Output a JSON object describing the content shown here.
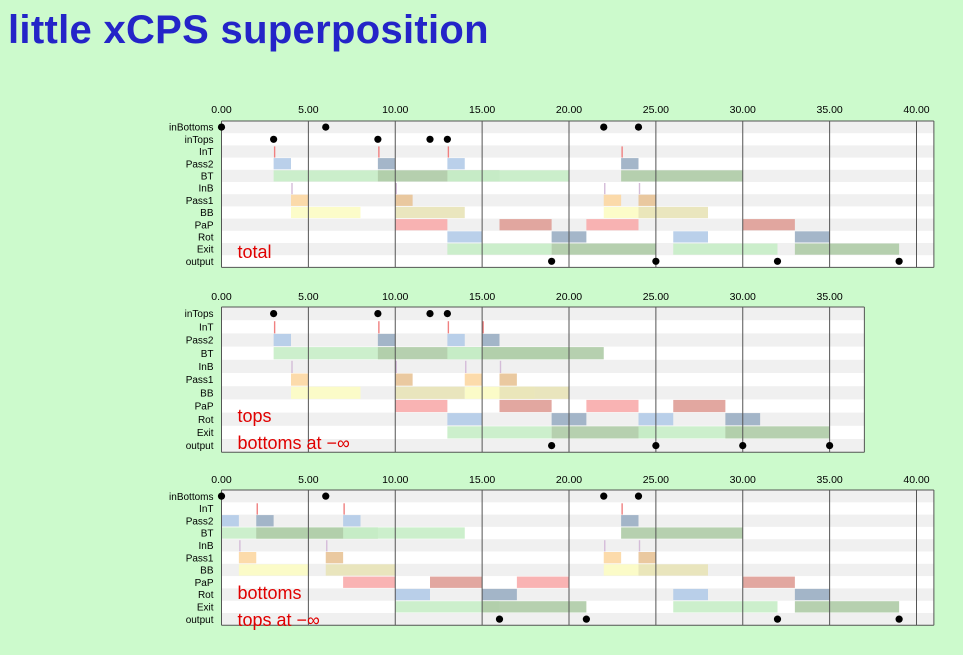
{
  "title": "little xCPS superposition",
  "colors": {
    "title": "#2424c8",
    "background": "#ccfacc",
    "caption": "#e00000",
    "Pass2": [
      "#b4cce8",
      "#9cb0c4"
    ],
    "BT": [
      "#c8eec8",
      "#b0cca8"
    ],
    "Pass1": [
      "#fcd8a4",
      "#e8c498"
    ],
    "BB": [
      "#fcfcc4",
      "#e8e4b8"
    ],
    "PaP": [
      "#f8acac",
      "#e0a098"
    ],
    "Rot": [
      "#b4cce8",
      "#9cb0c4"
    ],
    "Exit": [
      "#c8eec8",
      "#b0cca8"
    ],
    "tick": "#f08080",
    "tickLight": "#d4bcd8"
  },
  "charts": [
    {
      "name": "total",
      "captions": [
        "total"
      ],
      "x_ticks": [
        "0.00",
        "5.00",
        "10.00",
        "15.00",
        "20.00",
        "25.00",
        "30.00",
        "35.00",
        "40.00"
      ],
      "x_range": [
        0,
        41
      ],
      "rows": [
        "inBottoms",
        "inTops",
        "InT",
        "Pass2",
        "BT",
        "InB",
        "Pass1",
        "BB",
        "PaP",
        "Rot",
        "Exit",
        "output"
      ],
      "dots": [
        {
          "row": "inBottoms",
          "x": [
            0,
            6,
            22,
            24
          ]
        },
        {
          "row": "inTops",
          "x": [
            3,
            9,
            12,
            13
          ]
        },
        {
          "row": "output",
          "x": [
            19,
            25,
            32,
            39
          ]
        }
      ],
      "ticks": [
        {
          "row": "InT",
          "x": [
            3,
            9,
            13,
            23
          ],
          "light": false
        },
        {
          "row": "InB",
          "x": [
            4,
            10,
            22,
            24
          ],
          "light": true
        }
      ],
      "bars": [
        {
          "row": "Pass2",
          "spans": [
            [
              3,
              4,
              0
            ],
            [
              9,
              10,
              1
            ],
            [
              13,
              14,
              0
            ],
            [
              23,
              24,
              1
            ]
          ]
        },
        {
          "row": "BT",
          "spans": [
            [
              3,
              10,
              0
            ],
            [
              9,
              16,
              1
            ],
            [
              13,
              20,
              0
            ],
            [
              23,
              30,
              1
            ]
          ]
        },
        {
          "row": "Pass1",
          "spans": [
            [
              4,
              5,
              0
            ],
            [
              10,
              11,
              1
            ],
            [
              22,
              23,
              0
            ],
            [
              24,
              25,
              1
            ]
          ]
        },
        {
          "row": "BB",
          "spans": [
            [
              4,
              8,
              0
            ],
            [
              10,
              14,
              1
            ],
            [
              22,
              25,
              0
            ],
            [
              24,
              28,
              1
            ]
          ]
        },
        {
          "row": "PaP",
          "spans": [
            [
              10,
              13,
              0
            ],
            [
              16,
              19,
              1
            ],
            [
              21,
              24,
              0
            ],
            [
              30,
              33,
              1
            ]
          ]
        },
        {
          "row": "Rot",
          "spans": [
            [
              13,
              15,
              0
            ],
            [
              19,
              21,
              1
            ],
            [
              26,
              28,
              0
            ],
            [
              33,
              35,
              1
            ]
          ]
        },
        {
          "row": "Exit",
          "spans": [
            [
              13,
              19,
              0
            ],
            [
              19,
              25,
              1
            ],
            [
              26,
              32,
              0
            ],
            [
              33,
              39,
              1
            ]
          ]
        }
      ]
    },
    {
      "name": "tops",
      "captions": [
        "tops",
        "bottoms at −∞"
      ],
      "x_ticks": [
        "0.00",
        "5.00",
        "10.00",
        "15.00",
        "20.00",
        "25.00",
        "30.00",
        "35.00"
      ],
      "x_range": [
        0,
        37
      ],
      "rows": [
        "inTops",
        "InT",
        "Pass2",
        "BT",
        "InB",
        "Pass1",
        "BB",
        "PaP",
        "Rot",
        "Exit",
        "output"
      ],
      "dots": [
        {
          "row": "inTops",
          "x": [
            3,
            9,
            12,
            13
          ]
        },
        {
          "row": "output",
          "x": [
            19,
            25,
            30,
            35
          ]
        }
      ],
      "ticks": [
        {
          "row": "InT",
          "x": [
            3,
            9,
            13,
            15
          ],
          "light": false
        },
        {
          "row": "InB",
          "x": [
            4,
            10,
            14,
            16
          ],
          "light": true
        }
      ],
      "bars": [
        {
          "row": "Pass2",
          "spans": [
            [
              3,
              4,
              0
            ],
            [
              9,
              10,
              1
            ],
            [
              13,
              14,
              0
            ],
            [
              15,
              16,
              1
            ]
          ]
        },
        {
          "row": "BT",
          "spans": [
            [
              3,
              10,
              0
            ],
            [
              9,
              16,
              1
            ],
            [
              13,
              20,
              0
            ],
            [
              15,
              22,
              1
            ]
          ]
        },
        {
          "row": "Pass1",
          "spans": [
            [
              4,
              5,
              0
            ],
            [
              10,
              11,
              1
            ],
            [
              14,
              15,
              0
            ],
            [
              16,
              17,
              1
            ]
          ]
        },
        {
          "row": "BB",
          "spans": [
            [
              4,
              8,
              0
            ],
            [
              10,
              14,
              1
            ],
            [
              14,
              18,
              0
            ],
            [
              16,
              20,
              1
            ]
          ]
        },
        {
          "row": "PaP",
          "spans": [
            [
              10,
              13,
              0
            ],
            [
              16,
              19,
              1
            ],
            [
              21,
              24,
              0
            ],
            [
              26,
              29,
              1
            ]
          ]
        },
        {
          "row": "Rot",
          "spans": [
            [
              13,
              15,
              0
            ],
            [
              19,
              21,
              1
            ],
            [
              24,
              26,
              0
            ],
            [
              29,
              31,
              1
            ]
          ]
        },
        {
          "row": "Exit",
          "spans": [
            [
              13,
              19,
              0
            ],
            [
              19,
              25,
              1
            ],
            [
              24,
              30,
              0
            ],
            [
              29,
              35,
              1
            ]
          ]
        }
      ]
    },
    {
      "name": "bottoms",
      "captions": [
        "bottoms",
        "tops at −∞"
      ],
      "x_ticks": [
        "0.00",
        "5.00",
        "10.00",
        "15.00",
        "20.00",
        "25.00",
        "30.00",
        "35.00",
        "40.00"
      ],
      "x_range": [
        0,
        41
      ],
      "rows": [
        "inBottoms",
        "InT",
        "Pass2",
        "BT",
        "InB",
        "Pass1",
        "BB",
        "PaP",
        "Rot",
        "Exit",
        "output"
      ],
      "dots": [
        {
          "row": "inBottoms",
          "x": [
            0,
            6,
            22,
            24
          ]
        },
        {
          "row": "output",
          "x": [
            16,
            21,
            32,
            39
          ]
        }
      ],
      "ticks": [
        {
          "row": "InT",
          "x": [
            2,
            7,
            23
          ],
          "light": false
        },
        {
          "row": "InB",
          "x": [
            1,
            6,
            22,
            24
          ],
          "light": true
        }
      ],
      "bars": [
        {
          "row": "Pass2",
          "spans": [
            [
              0,
              1,
              0
            ],
            [
              2,
              3,
              1
            ],
            [
              7,
              8,
              0
            ],
            [
              23,
              24,
              1
            ]
          ]
        },
        {
          "row": "BT",
          "spans": [
            [
              0,
              7,
              0
            ],
            [
              2,
              9,
              1
            ],
            [
              7,
              14,
              0
            ],
            [
              23,
              30,
              1
            ]
          ]
        },
        {
          "row": "Pass1",
          "spans": [
            [
              1,
              2,
              0
            ],
            [
              6,
              7,
              1
            ],
            [
              22,
              23,
              0
            ],
            [
              24,
              25,
              1
            ]
          ]
        },
        {
          "row": "BB",
          "spans": [
            [
              1,
              5,
              0
            ],
            [
              6,
              10,
              1
            ],
            [
              22,
              25,
              0
            ],
            [
              24,
              28,
              1
            ]
          ]
        },
        {
          "row": "PaP",
          "spans": [
            [
              7,
              10,
              0
            ],
            [
              12,
              15,
              1
            ],
            [
              17,
              20,
              0
            ],
            [
              30,
              33,
              1
            ]
          ]
        },
        {
          "row": "Rot",
          "spans": [
            [
              10,
              12,
              0
            ],
            [
              15,
              17,
              1
            ],
            [
              26,
              28,
              0
            ],
            [
              33,
              35,
              1
            ]
          ]
        },
        {
          "row": "Exit",
          "spans": [
            [
              10,
              16,
              0
            ],
            [
              15,
              21,
              1
            ],
            [
              26,
              32,
              0
            ],
            [
              33,
              39,
              1
            ]
          ]
        }
      ]
    }
  ]
}
